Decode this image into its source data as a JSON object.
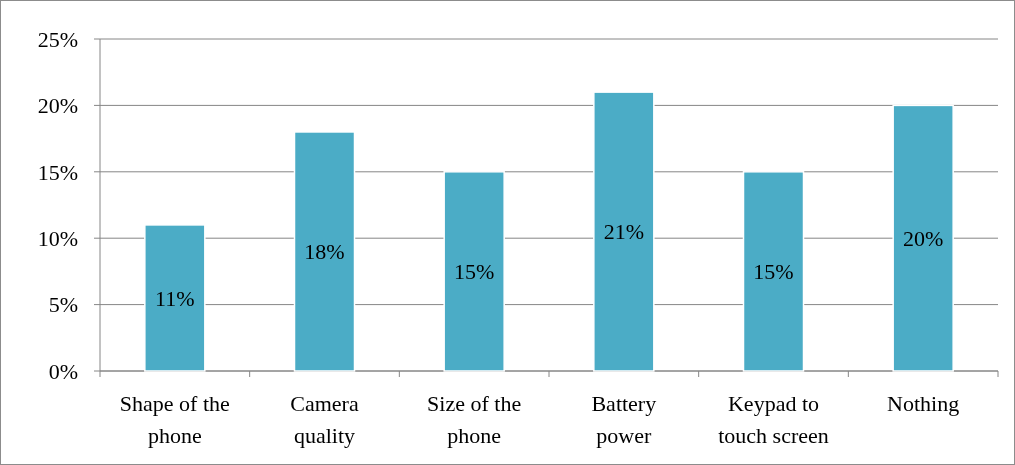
{
  "chart_data": {
    "type": "bar",
    "categories": [
      "Shape of the phone",
      "Camera quality",
      "Size of the phone",
      "Battery power",
      "Keypad to touch screen",
      "Nothing"
    ],
    "values": [
      11,
      18,
      15,
      21,
      15,
      20
    ],
    "color": "#4bacc6",
    "ylim": [
      0,
      25
    ],
    "yticks": [
      {
        "value": 0,
        "label": "0%"
      },
      {
        "value": 5,
        "label": "5%"
      },
      {
        "value": 10,
        "label": "10%"
      },
      {
        "value": 15,
        "label": "15%"
      },
      {
        "value": 20,
        "label": "20%"
      },
      {
        "value": 25,
        "label": "25%"
      }
    ],
    "grid": "y",
    "value_labels": [
      "11%",
      "18%",
      "15%",
      "21%",
      "15%",
      "20%"
    ]
  }
}
